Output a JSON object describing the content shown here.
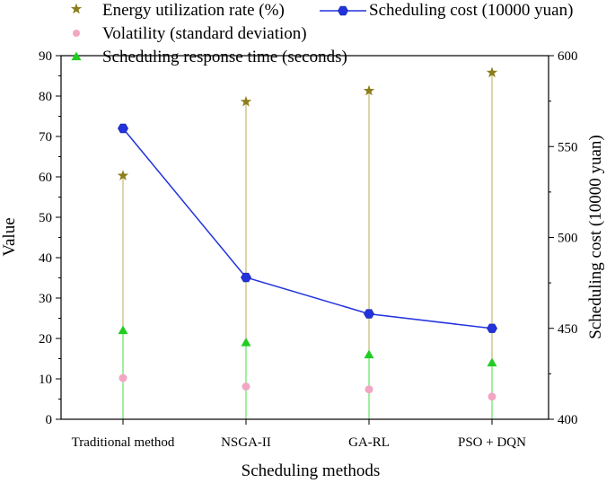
{
  "chart_data": {
    "type": "line",
    "xlabel": "Scheduling methods",
    "ylabel": "Value",
    "y2label": "Scheduling cost (10000 yuan)",
    "ylim": [
      0,
      90
    ],
    "y2lim": [
      400,
      600
    ],
    "yticks": [
      "0",
      "10",
      "20",
      "30",
      "40",
      "50",
      "60",
      "70",
      "80",
      "90"
    ],
    "y2ticks": [
      "400",
      "450",
      "500",
      "550",
      "600"
    ],
    "categories": [
      "Traditional method",
      "NSGA-II",
      "GA-RL",
      "PSO + DQN"
    ],
    "series": [
      {
        "name": "Energy utilization rate (%)",
        "axis": "left",
        "marker": "star",
        "color": "#8b7d1a",
        "values": [
          60.3,
          78.6,
          81.3,
          85.8
        ]
      },
      {
        "name": "Volatility (standard deviation)",
        "axis": "left",
        "marker": "circle",
        "color": "#f1a7c3",
        "values": [
          10.2,
          8.1,
          7.4,
          5.6
        ]
      },
      {
        "name": "Scheduling response time (seconds)",
        "axis": "left",
        "marker": "triangle",
        "color": "#22cc22",
        "values": [
          22.0,
          19.0,
          16.0,
          14.0
        ]
      },
      {
        "name": "Scheduling cost (10000 yuan)",
        "axis": "right",
        "marker": "hexagon",
        "color": "#2233dd",
        "values": [
          560,
          478,
          458,
          450
        ]
      }
    ],
    "legend_position": "top-left"
  }
}
